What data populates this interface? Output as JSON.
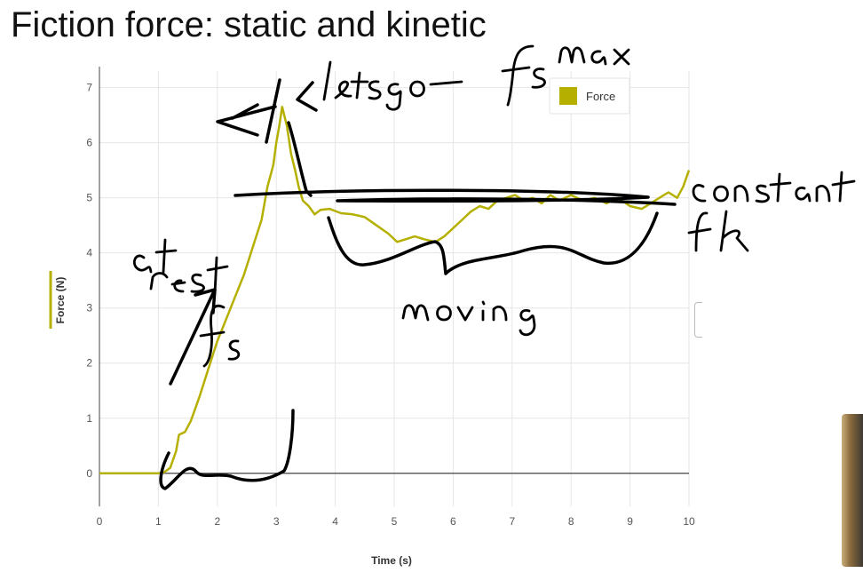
{
  "slide": {
    "title": "Fiction force: static and kinetic"
  },
  "chart_data": {
    "type": "line",
    "xlabel": "Time (s)",
    "ylabel": "Force (N)",
    "xlim": [
      0,
      10
    ],
    "ylim": [
      -0.6,
      7.3
    ],
    "x_ticks": [
      0,
      1,
      2,
      3,
      4,
      5,
      6,
      7,
      8,
      9,
      10
    ],
    "y_ticks": [
      0,
      1,
      2,
      3,
      4,
      5,
      6,
      7
    ],
    "grid": true,
    "legend": {
      "position": "top-right",
      "entries": [
        "Force"
      ]
    },
    "series": [
      {
        "name": "Force",
        "color": "#b5b000",
        "points": [
          [
            0,
            0
          ],
          [
            0.5,
            0
          ],
          [
            1.0,
            0
          ],
          [
            1.1,
            0.02
          ],
          [
            1.2,
            0.1
          ],
          [
            1.3,
            0.4
          ],
          [
            1.35,
            0.7
          ],
          [
            1.45,
            0.75
          ],
          [
            1.55,
            0.95
          ],
          [
            1.7,
            1.4
          ],
          [
            1.85,
            1.9
          ],
          [
            2.0,
            2.4
          ],
          [
            2.15,
            2.8
          ],
          [
            2.3,
            3.2
          ],
          [
            2.45,
            3.6
          ],
          [
            2.6,
            4.1
          ],
          [
            2.75,
            4.6
          ],
          [
            2.85,
            5.2
          ],
          [
            2.95,
            5.6
          ],
          [
            3.0,
            6.0
          ],
          [
            3.05,
            6.3
          ],
          [
            3.1,
            6.65
          ],
          [
            3.18,
            6.3
          ],
          [
            3.25,
            5.8
          ],
          [
            3.32,
            5.5
          ],
          [
            3.38,
            5.2
          ],
          [
            3.45,
            4.95
          ],
          [
            3.55,
            4.85
          ],
          [
            3.65,
            4.7
          ],
          [
            3.75,
            4.78
          ],
          [
            3.9,
            4.8
          ],
          [
            4.1,
            4.72
          ],
          [
            4.3,
            4.7
          ],
          [
            4.5,
            4.65
          ],
          [
            4.7,
            4.5
          ],
          [
            4.9,
            4.35
          ],
          [
            5.05,
            4.2
          ],
          [
            5.2,
            4.25
          ],
          [
            5.35,
            4.3
          ],
          [
            5.5,
            4.25
          ],
          [
            5.7,
            4.2
          ],
          [
            5.85,
            4.3
          ],
          [
            6.0,
            4.45
          ],
          [
            6.15,
            4.6
          ],
          [
            6.3,
            4.75
          ],
          [
            6.45,
            4.85
          ],
          [
            6.6,
            4.8
          ],
          [
            6.75,
            4.95
          ],
          [
            6.9,
            5.0
          ],
          [
            7.05,
            5.05
          ],
          [
            7.2,
            4.95
          ],
          [
            7.35,
            5.0
          ],
          [
            7.5,
            4.9
          ],
          [
            7.65,
            5.05
          ],
          [
            7.8,
            4.95
          ],
          [
            8.0,
            5.05
          ],
          [
            8.2,
            4.95
          ],
          [
            8.4,
            5.0
          ],
          [
            8.6,
            4.9
          ],
          [
            8.8,
            5.0
          ],
          [
            9.0,
            4.85
          ],
          [
            9.2,
            4.8
          ],
          [
            9.35,
            4.9
          ],
          [
            9.5,
            5.0
          ],
          [
            9.65,
            5.1
          ],
          [
            9.8,
            5.0
          ],
          [
            9.9,
            5.2
          ],
          [
            10.0,
            5.5
          ]
        ]
      }
    ],
    "annotations": [
      "letsgo",
      "fs max",
      "at rest",
      "fs",
      "moving",
      "constant",
      "fk"
    ]
  }
}
